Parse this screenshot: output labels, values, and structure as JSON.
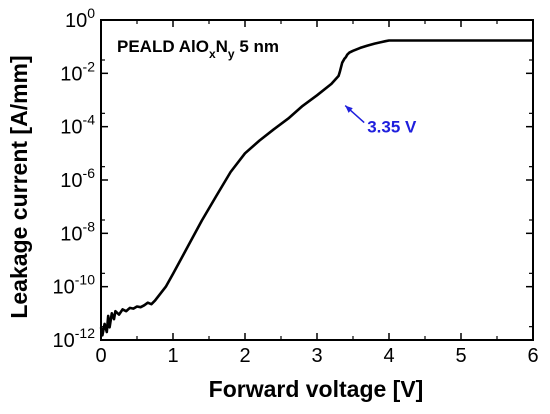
{
  "chart_data": {
    "type": "line",
    "xlabel": "Forward voltage [V]",
    "ylabel": "Leakage current [A/mm]",
    "xlim": [
      0,
      6
    ],
    "ylim": [
      1e-12,
      1
    ],
    "yscale": "log",
    "x_ticks": [
      "0",
      "1",
      "2",
      "3",
      "4",
      "5",
      "6"
    ],
    "y_ticks": [
      {
        "base": "10",
        "exp": "-12"
      },
      {
        "base": "10",
        "exp": "-10"
      },
      {
        "base": "10",
        "exp": "-8"
      },
      {
        "base": "10",
        "exp": "-6"
      },
      {
        "base": "10",
        "exp": "-4"
      },
      {
        "base": "10",
        "exp": "-2"
      },
      {
        "base": "10",
        "exp": "0"
      }
    ],
    "inset_label": {
      "prefix": "PEALD AlO",
      "sub1": "x",
      "mid": "N",
      "sub2": "y",
      "suffix": " 5 nm"
    },
    "annotation": {
      "text": "3.35 V",
      "x": 3.35,
      "y": 0.0008,
      "color": "#1f1fdd"
    },
    "series": [
      {
        "color": "#000000",
        "x": [
          0.0,
          0.02,
          0.05,
          0.08,
          0.1,
          0.12,
          0.15,
          0.18,
          0.2,
          0.25,
          0.3,
          0.35,
          0.4,
          0.45,
          0.5,
          0.55,
          0.6,
          0.65,
          0.7,
          0.75,
          0.8,
          0.9,
          1.0,
          1.2,
          1.4,
          1.6,
          1.8,
          2.0,
          2.2,
          2.4,
          2.6,
          2.8,
          3.0,
          3.2,
          3.3,
          3.32,
          3.35,
          3.38,
          3.4,
          3.42,
          3.45,
          3.5,
          3.6,
          3.7,
          3.8,
          3.9,
          3.95,
          4.0,
          4.2,
          5.0,
          6.0
        ],
        "y": [
          3e-12,
          1.5e-12,
          4e-12,
          2e-12,
          8e-12,
          3e-12,
          1e-11,
          6e-12,
          1.2e-11,
          9e-12,
          1.4e-11,
          1.2e-11,
          1.6e-11,
          1.5e-11,
          1.8e-11,
          1.7e-11,
          2e-11,
          2.5e-11,
          2.2e-11,
          3e-11,
          4.5e-11,
          1e-10,
          3e-10,
          3e-09,
          3e-08,
          2.5e-07,
          2e-06,
          1e-05,
          3e-05,
          8e-05,
          0.0002,
          0.0006,
          0.0015,
          0.004,
          0.008,
          0.012,
          0.025,
          0.035,
          0.04,
          0.05,
          0.06,
          0.07,
          0.09,
          0.11,
          0.13,
          0.15,
          0.16,
          0.17,
          0.17,
          0.17,
          0.17
        ]
      }
    ]
  }
}
